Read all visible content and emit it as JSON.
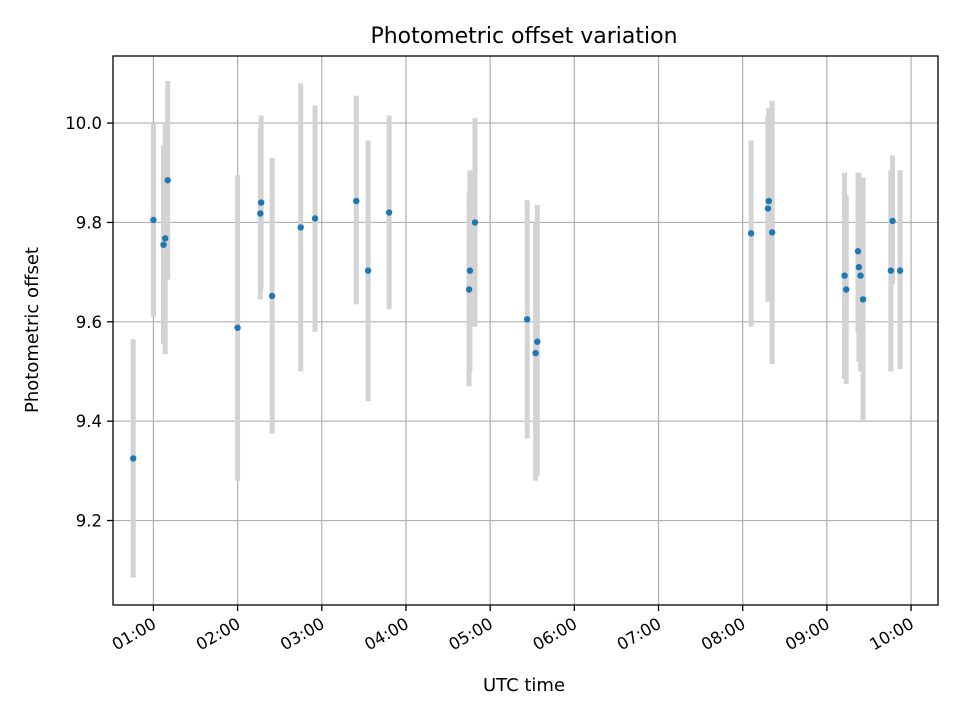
{
  "chart_data": {
    "type": "scatter",
    "title": "Photometric offset variation",
    "xlabel": "UTC time",
    "ylabel": "Photometric offset",
    "x_unit": "hours UTC",
    "xlim": [
      0.52,
      10.32
    ],
    "ylim": [
      9.03,
      10.135
    ],
    "x_ticks": [
      {
        "value": 1,
        "label": "01:00"
      },
      {
        "value": 2,
        "label": "02:00"
      },
      {
        "value": 3,
        "label": "03:00"
      },
      {
        "value": 4,
        "label": "04:00"
      },
      {
        "value": 5,
        "label": "05:00"
      },
      {
        "value": 6,
        "label": "06:00"
      },
      {
        "value": 7,
        "label": "07:00"
      },
      {
        "value": 8,
        "label": "08:00"
      },
      {
        "value": 9,
        "label": "09:00"
      },
      {
        "value": 10,
        "label": "10:00"
      }
    ],
    "y_ticks": [
      {
        "value": 9.2,
        "label": "9.2"
      },
      {
        "value": 9.4,
        "label": "9.4"
      },
      {
        "value": 9.6,
        "label": "9.6"
      },
      {
        "value": 9.8,
        "label": "9.8"
      },
      {
        "value": 10.0,
        "label": "10.0"
      }
    ],
    "grid": true,
    "legend": "none",
    "point_color": "#1f77b4",
    "errorbar_color": "#d3d3d3",
    "series": [
      {
        "points": [
          {
            "x": 0.76,
            "y": 9.325,
            "ylo": 9.085,
            "yhi": 9.565
          },
          {
            "x": 1.0,
            "y": 9.805,
            "ylo": 9.61,
            "yhi": 10.0
          },
          {
            "x": 1.12,
            "y": 9.755,
            "ylo": 9.555,
            "yhi": 9.955
          },
          {
            "x": 1.14,
            "y": 9.768,
            "ylo": 9.535,
            "yhi": 10.0
          },
          {
            "x": 1.17,
            "y": 9.885,
            "ylo": 9.685,
            "yhi": 10.085
          },
          {
            "x": 2.0,
            "y": 9.588,
            "ylo": 9.28,
            "yhi": 9.895
          },
          {
            "x": 2.27,
            "y": 9.818,
            "ylo": 9.645,
            "yhi": 9.99
          },
          {
            "x": 2.28,
            "y": 9.84,
            "ylo": 9.665,
            "yhi": 10.015
          },
          {
            "x": 2.41,
            "y": 9.652,
            "ylo": 9.375,
            "yhi": 9.93
          },
          {
            "x": 2.75,
            "y": 9.79,
            "ylo": 9.5,
            "yhi": 10.08
          },
          {
            "x": 2.92,
            "y": 9.808,
            "ylo": 9.58,
            "yhi": 10.035
          },
          {
            "x": 3.41,
            "y": 9.843,
            "ylo": 9.635,
            "yhi": 10.055
          },
          {
            "x": 3.55,
            "y": 9.703,
            "ylo": 9.44,
            "yhi": 9.965
          },
          {
            "x": 3.8,
            "y": 9.82,
            "ylo": 9.625,
            "yhi": 10.015
          },
          {
            "x": 4.75,
            "y": 9.665,
            "ylo": 9.47,
            "yhi": 9.86
          },
          {
            "x": 4.76,
            "y": 9.703,
            "ylo": 9.5,
            "yhi": 9.905
          },
          {
            "x": 4.82,
            "y": 9.8,
            "ylo": 9.59,
            "yhi": 10.01
          },
          {
            "x": 5.44,
            "y": 9.605,
            "ylo": 9.365,
            "yhi": 9.845
          },
          {
            "x": 5.54,
            "y": 9.537,
            "ylo": 9.28,
            "yhi": 9.8
          },
          {
            "x": 5.56,
            "y": 9.56,
            "ylo": 9.29,
            "yhi": 9.835
          },
          {
            "x": 8.1,
            "y": 9.778,
            "ylo": 9.59,
            "yhi": 9.965
          },
          {
            "x": 8.3,
            "y": 9.828,
            "ylo": 9.64,
            "yhi": 10.015
          },
          {
            "x": 8.31,
            "y": 9.843,
            "ylo": 9.655,
            "yhi": 10.03
          },
          {
            "x": 8.35,
            "y": 9.78,
            "ylo": 9.515,
            "yhi": 10.045
          },
          {
            "x": 9.21,
            "y": 9.693,
            "ylo": 9.485,
            "yhi": 9.9
          },
          {
            "x": 9.23,
            "y": 9.665,
            "ylo": 9.475,
            "yhi": 9.855
          },
          {
            "x": 9.37,
            "y": 9.742,
            "ylo": 9.58,
            "yhi": 9.9
          },
          {
            "x": 9.38,
            "y": 9.71,
            "ylo": 9.52,
            "yhi": 9.9
          },
          {
            "x": 9.4,
            "y": 9.693,
            "ylo": 9.5,
            "yhi": 9.885
          },
          {
            "x": 9.43,
            "y": 9.645,
            "ylo": 9.4,
            "yhi": 9.89
          },
          {
            "x": 9.76,
            "y": 9.703,
            "ylo": 9.5,
            "yhi": 9.905
          },
          {
            "x": 9.78,
            "y": 9.803,
            "ylo": 9.675,
            "yhi": 9.935
          },
          {
            "x": 9.87,
            "y": 9.703,
            "ylo": 9.505,
            "yhi": 9.905
          }
        ]
      }
    ]
  }
}
